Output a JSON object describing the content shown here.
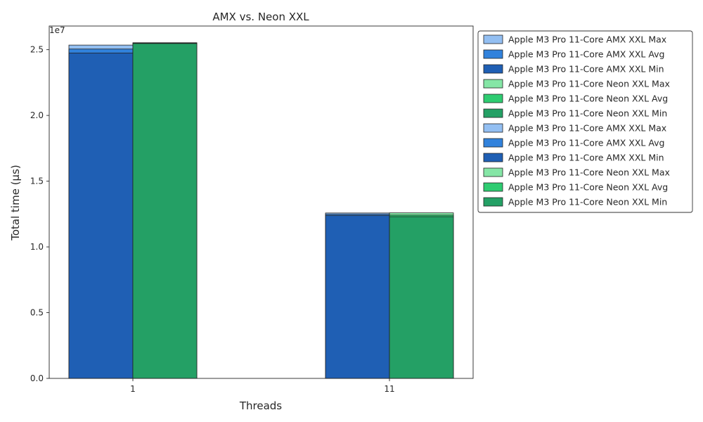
{
  "chart_data": {
    "type": "bar",
    "title": "AMX vs. Neon XXL",
    "xlabel": "Threads",
    "ylabel": "Total time (µs)",
    "categories": [
      "1",
      "11"
    ],
    "y_scale_label": "1e7",
    "ylim": [
      0,
      26800000
    ],
    "yticks": [
      0,
      5000000,
      10000000,
      15000000,
      20000000,
      25000000
    ],
    "ytick_labels": [
      "0.0",
      "0.5",
      "1.0",
      "1.5",
      "2.0",
      "2.5"
    ],
    "grid": false,
    "legend_position": "outside-top-right",
    "groups": [
      {
        "name": "AMX",
        "offset": -1,
        "layers": [
          {
            "stat": "Max",
            "color": "#93bff2",
            "values": [
              25350000,
              12580000
            ]
          },
          {
            "stat": "Avg",
            "color": "#3182dc",
            "values": [
              25050000,
              12480000
            ]
          },
          {
            "stat": "Min",
            "color": "#1f5fb4",
            "values": [
              24750000,
              12380000
            ]
          }
        ]
      },
      {
        "name": "Neon",
        "offset": 0,
        "layers": [
          {
            "stat": "Max",
            "color": "#85e6a6",
            "values": [
              25530000,
              12590000
            ]
          },
          {
            "stat": "Avg",
            "color": "#2ecc71",
            "values": [
              25500000,
              12420000
            ]
          },
          {
            "stat": "Min",
            "color": "#24a065",
            "values": [
              25470000,
              12300000
            ]
          }
        ]
      }
    ],
    "legend": [
      {
        "label": "Apple M3 Pro 11-Core AMX XXL Max",
        "color": "#93bff2"
      },
      {
        "label": "Apple M3 Pro 11-Core AMX XXL Avg",
        "color": "#3182dc"
      },
      {
        "label": "Apple M3 Pro 11-Core AMX XXL Min",
        "color": "#1f5fb4"
      },
      {
        "label": "Apple M3 Pro 11-Core Neon XXL Max",
        "color": "#85e6a6"
      },
      {
        "label": "Apple M3 Pro 11-Core Neon XXL Avg",
        "color": "#2ecc71"
      },
      {
        "label": "Apple M3 Pro 11-Core Neon XXL Min",
        "color": "#24a065"
      },
      {
        "label": "Apple M3 Pro 11-Core AMX XXL Max",
        "color": "#93bff2"
      },
      {
        "label": "Apple M3 Pro 11-Core AMX XXL Avg",
        "color": "#3182dc"
      },
      {
        "label": "Apple M3 Pro 11-Core AMX XXL Min",
        "color": "#1f5fb4"
      },
      {
        "label": "Apple M3 Pro 11-Core Neon XXL Max",
        "color": "#85e6a6"
      },
      {
        "label": "Apple M3 Pro 11-Core Neon XXL Avg",
        "color": "#2ecc71"
      },
      {
        "label": "Apple M3 Pro 11-Core Neon XXL Min",
        "color": "#24a065"
      }
    ]
  }
}
